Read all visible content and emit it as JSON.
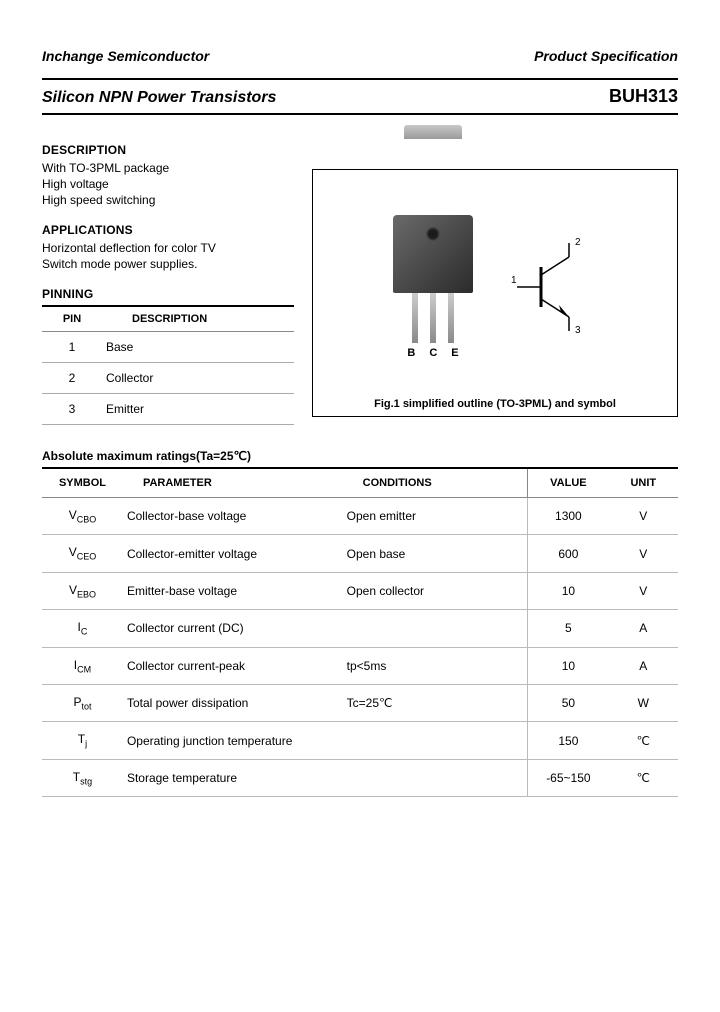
{
  "header": {
    "company": "Inchange Semiconductor",
    "doctype": "Product Specification",
    "title": "Silicon NPN Power Transistors",
    "part": "BUH313"
  },
  "description": {
    "heading": "DESCRIPTION",
    "items": [
      "With TO-3PML package",
      "High voltage",
      "High speed switching"
    ]
  },
  "applications": {
    "heading": "APPLICATIONS",
    "items": [
      "Horizontal deflection for color TV",
      "Switch mode power supplies."
    ]
  },
  "pinning": {
    "heading": "PINNING",
    "columns": [
      "PIN",
      "DESCRIPTION"
    ],
    "rows": [
      {
        "pin": "1",
        "desc": "Base"
      },
      {
        "pin": "2",
        "desc": "Collector"
      },
      {
        "pin": "3",
        "desc": "Emitter"
      }
    ]
  },
  "figure": {
    "caption": "Fig.1 simplified outline (TO-3PML) and symbol",
    "lead_labels": [
      "B",
      "C",
      "E"
    ],
    "sym_labels": [
      "1",
      "2",
      "3"
    ]
  },
  "ratings": {
    "heading": "Absolute maximum ratings(Ta=25℃)",
    "columns": [
      "SYMBOL",
      "PARAMETER",
      "CONDITIONS",
      "VALUE",
      "UNIT"
    ],
    "rows": [
      {
        "sym": "V",
        "sub": "CBO",
        "param": "Collector-base voltage",
        "cond": "Open emitter",
        "val": "1300",
        "unit": "V"
      },
      {
        "sym": "V",
        "sub": "CEO",
        "param": "Collector-emitter voltage",
        "cond": "Open base",
        "val": "600",
        "unit": "V"
      },
      {
        "sym": "V",
        "sub": "EBO",
        "param": "Emitter-base voltage",
        "cond": "Open collector",
        "val": "10",
        "unit": "V"
      },
      {
        "sym": "I",
        "sub": "C",
        "param": "Collector current (DC)",
        "cond": "",
        "val": "5",
        "unit": "A"
      },
      {
        "sym": "I",
        "sub": "CM",
        "param": "Collector current-peak",
        "cond": "tp<5ms",
        "val": "10",
        "unit": "A"
      },
      {
        "sym": "P",
        "sub": "tot",
        "param": "Total power dissipation",
        "cond": "Tc=25℃",
        "val": "50",
        "unit": "W"
      },
      {
        "sym": "T",
        "sub": "j",
        "param": "Operating junction temperature",
        "cond": "",
        "val": "150",
        "unit": "℃"
      },
      {
        "sym": "T",
        "sub": "stg",
        "param": "Storage temperature",
        "cond": "",
        "val": "-65~150",
        "unit": "℃"
      }
    ]
  }
}
